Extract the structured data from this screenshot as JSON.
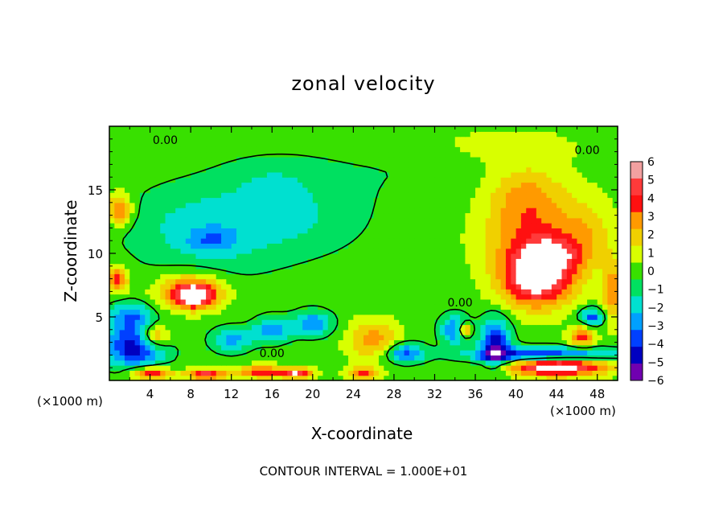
{
  "chart_data": {
    "type": "heatmap",
    "title": "zonal velocity",
    "xlabel": "X-coordinate",
    "ylabel": "Z-coordinate",
    "x_unit_label": "(×1000 m)",
    "y_unit_label": "(×1000 m)",
    "xlim": [
      0,
      50
    ],
    "ylim": [
      0,
      20
    ],
    "x_ticks": [
      "4",
      "8",
      "12",
      "16",
      "20",
      "24",
      "28",
      "32",
      "36",
      "40",
      "44",
      "48"
    ],
    "y_ticks": [
      "5",
      "10",
      "15"
    ],
    "colorbar": {
      "min": -6,
      "max": 6,
      "labels": [
        "6",
        "5",
        "4",
        "3",
        "2",
        "1",
        "0",
        "−1",
        "−2",
        "−3",
        "−4",
        "−5",
        "−6"
      ],
      "colors": [
        "#f2a0a0",
        "#ff3a3a",
        "#ff1010",
        "#ff9a00",
        "#f0d000",
        "#d8ff00",
        "#38e000",
        "#00e060",
        "#00e0d0",
        "#00a0ff",
        "#0040ff",
        "#0000c0",
        "#7000b0"
      ]
    },
    "contour_labels": [
      {
        "text": "0.00",
        "x": 5.5,
        "z": 19.0
      },
      {
        "text": "0.00",
        "x": 47.0,
        "z": 18.2
      },
      {
        "text": "0.00",
        "x": 34.5,
        "z": 6.2
      },
      {
        "text": "0.00",
        "x": 16.0,
        "z": 2.2
      }
    ],
    "blobs": [
      {
        "x": 10,
        "z": 12,
        "sx": 8,
        "sz": 3.5,
        "v": -2.3
      },
      {
        "x": 10,
        "z": 11,
        "sx": 2.2,
        "sz": 0.9,
        "v": -1.8
      },
      {
        "x": 20,
        "z": 13,
        "sx": 6,
        "sz": 3,
        "v": -1.2
      },
      {
        "x": 16,
        "z": 16,
        "sx": 5,
        "sz": 1.8,
        "v": -1.0
      },
      {
        "x": 8,
        "z": 7,
        "sx": 3,
        "sz": 1.3,
        "v": 5
      },
      {
        "x": 8.5,
        "z": 6.6,
        "sx": 1.6,
        "sz": 0.8,
        "v": 4
      },
      {
        "x": 42,
        "z": 8.0,
        "sx": 3.5,
        "sz": 2.2,
        "v": 6.5
      },
      {
        "x": 43.5,
        "z": 9.8,
        "sx": 2.2,
        "sz": 1.2,
        "v": 3.5
      },
      {
        "x": 42,
        "z": 11,
        "sx": 5,
        "sz": 2.5,
        "v": 3.0
      },
      {
        "x": 41,
        "z": 14.5,
        "sx": 4,
        "sz": 2.5,
        "v": 2.8
      },
      {
        "x": 47,
        "z": 11.5,
        "sx": 2.5,
        "sz": 3,
        "v": 1.5
      },
      {
        "x": 2.5,
        "z": 2.8,
        "sx": 3,
        "sz": 1.8,
        "v": -5.5
      },
      {
        "x": 4.5,
        "z": 3.5,
        "sx": 1.5,
        "sz": 0.9,
        "v": 4.5
      },
      {
        "x": 2,
        "z": 5.2,
        "sx": 2,
        "sz": 1,
        "v": -3
      },
      {
        "x": 12,
        "z": 3.2,
        "sx": 2,
        "sz": 1,
        "v": -3
      },
      {
        "x": 16,
        "z": 4,
        "sx": 1.8,
        "sz": 1,
        "v": -3.5
      },
      {
        "x": 20,
        "z": 4.5,
        "sx": 2,
        "sz": 1,
        "v": -3.5
      },
      {
        "x": 26,
        "z": 3.2,
        "sx": 2.5,
        "sz": 1.5,
        "v": 3
      },
      {
        "x": 29,
        "z": 2.2,
        "sx": 2,
        "sz": 0.8,
        "v": -4
      },
      {
        "x": 34,
        "z": 4,
        "sx": 1.5,
        "sz": 1.2,
        "v": -3.5
      },
      {
        "x": 35,
        "z": 4,
        "sx": 0.6,
        "sz": 0.5,
        "v": 5.5
      },
      {
        "x": 38,
        "z": 3,
        "sx": 1.5,
        "sz": 2,
        "v": -5
      },
      {
        "x": 44,
        "z": 1.2,
        "sx": 5,
        "sz": 0.8,
        "v": 7
      },
      {
        "x": 43,
        "z": 2.0,
        "sx": 7,
        "sz": 0.6,
        "v": -6
      },
      {
        "x": 46.5,
        "z": 3.5,
        "sx": 1.2,
        "sz": 0.8,
        "v": 4
      },
      {
        "x": 47.5,
        "z": 5,
        "sx": 1.3,
        "sz": 0.7,
        "v": -4
      },
      {
        "x": 4,
        "z": 0.6,
        "sx": 2,
        "sz": 0.5,
        "v": 5
      },
      {
        "x": 9.5,
        "z": 0.5,
        "sx": 2,
        "sz": 0.4,
        "v": 5
      },
      {
        "x": 15,
        "z": 0.7,
        "sx": 2.5,
        "sz": 0.5,
        "v": 4
      },
      {
        "x": 18.5,
        "z": 0.6,
        "sx": 1.5,
        "sz": 0.4,
        "v": 5
      },
      {
        "x": 25,
        "z": 0.6,
        "sx": 1.5,
        "sz": 0.5,
        "v": 4
      },
      {
        "x": 0.8,
        "z": 8,
        "sx": 1,
        "sz": 1,
        "v": 4
      },
      {
        "x": 1,
        "z": 13.5,
        "sx": 1.2,
        "sz": 1.2,
        "v": 4
      },
      {
        "x": 49.5,
        "z": 7,
        "sx": 1,
        "sz": 2.5,
        "v": 3
      },
      {
        "x": 30,
        "z": 17,
        "sx": 10,
        "sz": 3,
        "v": -0.6
      },
      {
        "x": 38,
        "z": 18.5,
        "sx": 8,
        "sz": 1.5,
        "v": 1.0
      }
    ]
  },
  "footnote": "CONTOUR INTERVAL = 1.000E+01"
}
